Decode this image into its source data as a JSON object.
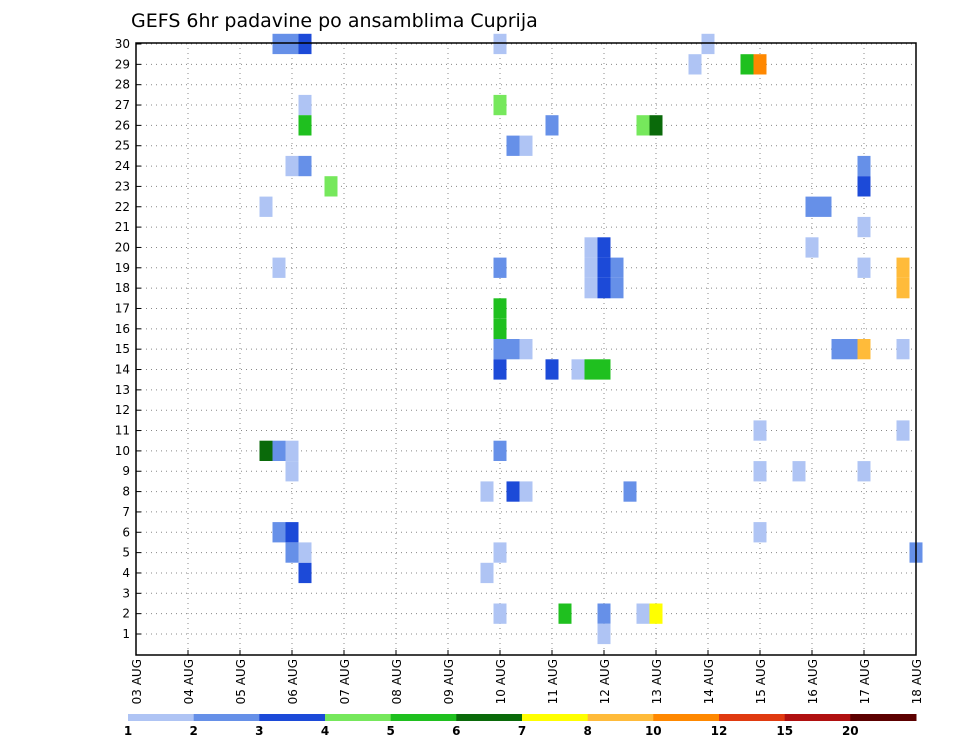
{
  "chart_data": {
    "type": "heatmap",
    "title": "GEFS 6hr padavine po ansamblima Cuprija",
    "x_labels": [
      "03 AUG",
      "04 AUG",
      "05 AUG",
      "06 AUG",
      "07 AUG",
      "08 AUG",
      "09 AUG",
      "10 AUG",
      "11 AUG",
      "12 AUG",
      "13 AUG",
      "14 AUG",
      "15 AUG",
      "16 AUG",
      "17 AUG",
      "18 AUG"
    ],
    "y_labels": [
      "1",
      "2",
      "3",
      "4",
      "5",
      "6",
      "7",
      "8",
      "9",
      "10",
      "11",
      "12",
      "13",
      "14",
      "15",
      "16",
      "17",
      "18",
      "19",
      "20",
      "21",
      "22",
      "23",
      "24",
      "25",
      "26",
      "27",
      "28",
      "29",
      "30"
    ],
    "xlim_days": [
      0,
      15
    ],
    "ylim": [
      1,
      30
    ],
    "grid": true,
    "colorbar": {
      "labels": [
        "1",
        "2",
        "3",
        "4",
        "5",
        "6",
        "7",
        "8",
        "10",
        "12",
        "15",
        "20"
      ],
      "colors": [
        "#afc4f4",
        "#6690e8",
        "#1c4ad8",
        "#76e85c",
        "#1fc01f",
        "#0a6a0a",
        "#ffff00",
        "#ffbb3a",
        "#ff8800",
        "#e03a10",
        "#b01010",
        "#5c0000"
      ]
    },
    "cells": [
      {
        "x": 2.75,
        "y": 30,
        "c": 1
      },
      {
        "x": 3.0,
        "y": 30,
        "c": 1
      },
      {
        "x": 3.25,
        "y": 30,
        "c": 2
      },
      {
        "x": 7.0,
        "y": 30,
        "c": 0
      },
      {
        "x": 11.0,
        "y": 30,
        "c": 0
      },
      {
        "x": 10.75,
        "y": 29,
        "c": 0
      },
      {
        "x": 11.75,
        "y": 29,
        "c": 4
      },
      {
        "x": 12.0,
        "y": 29,
        "c": 8
      },
      {
        "x": 3.25,
        "y": 27,
        "c": 0
      },
      {
        "x": 7.0,
        "y": 27,
        "c": 3
      },
      {
        "x": 3.25,
        "y": 26,
        "c": 4
      },
      {
        "x": 8.0,
        "y": 26,
        "c": 1
      },
      {
        "x": 9.75,
        "y": 26,
        "c": 3
      },
      {
        "x": 10.0,
        "y": 26,
        "c": 5
      },
      {
        "x": 7.25,
        "y": 25,
        "c": 1
      },
      {
        "x": 7.5,
        "y": 25,
        "c": 0
      },
      {
        "x": 3.0,
        "y": 24,
        "c": 0
      },
      {
        "x": 3.25,
        "y": 24,
        "c": 1
      },
      {
        "x": 14.0,
        "y": 24,
        "c": 1
      },
      {
        "x": 3.75,
        "y": 23,
        "c": 3
      },
      {
        "x": 14.0,
        "y": 23,
        "c": 2
      },
      {
        "x": 2.5,
        "y": 22,
        "c": 0
      },
      {
        "x": 13.0,
        "y": 22,
        "c": 1
      },
      {
        "x": 13.25,
        "y": 22,
        "c": 1
      },
      {
        "x": 14.0,
        "y": 21,
        "c": 0
      },
      {
        "x": 8.75,
        "y": 20,
        "c": 0
      },
      {
        "x": 9.0,
        "y": 20,
        "c": 2
      },
      {
        "x": 13.0,
        "y": 20,
        "c": 0
      },
      {
        "x": 2.75,
        "y": 19,
        "c": 0
      },
      {
        "x": 7.0,
        "y": 19,
        "c": 1
      },
      {
        "x": 8.75,
        "y": 19,
        "c": 0
      },
      {
        "x": 9.0,
        "y": 19,
        "c": 2
      },
      {
        "x": 9.25,
        "y": 19,
        "c": 1
      },
      {
        "x": 14.0,
        "y": 19,
        "c": 0
      },
      {
        "x": 14.75,
        "y": 19,
        "c": 7
      },
      {
        "x": 8.75,
        "y": 18,
        "c": 0
      },
      {
        "x": 9.0,
        "y": 18,
        "c": 2
      },
      {
        "x": 9.25,
        "y": 18,
        "c": 1
      },
      {
        "x": 14.75,
        "y": 18,
        "c": 7
      },
      {
        "x": 7.0,
        "y": 17,
        "c": 4
      },
      {
        "x": 7.0,
        "y": 16,
        "c": 4
      },
      {
        "x": 7.0,
        "y": 15,
        "c": 1
      },
      {
        "x": 7.25,
        "y": 15,
        "c": 1
      },
      {
        "x": 7.5,
        "y": 15,
        "c": 0
      },
      {
        "x": 13.5,
        "y": 15,
        "c": 1
      },
      {
        "x": 13.75,
        "y": 15,
        "c": 1
      },
      {
        "x": 14.0,
        "y": 15,
        "c": 7
      },
      {
        "x": 14.75,
        "y": 15,
        "c": 0
      },
      {
        "x": 7.0,
        "y": 14,
        "c": 2
      },
      {
        "x": 8.0,
        "y": 14,
        "c": 2
      },
      {
        "x": 8.5,
        "y": 14,
        "c": 0
      },
      {
        "x": 8.75,
        "y": 14,
        "c": 4
      },
      {
        "x": 9.0,
        "y": 14,
        "c": 4
      },
      {
        "x": 12.0,
        "y": 11,
        "c": 0
      },
      {
        "x": 14.75,
        "y": 11,
        "c": 0
      },
      {
        "x": 2.5,
        "y": 10,
        "c": 5
      },
      {
        "x": 2.75,
        "y": 10,
        "c": 1
      },
      {
        "x": 3.0,
        "y": 10,
        "c": 0
      },
      {
        "x": 7.0,
        "y": 10,
        "c": 1
      },
      {
        "x": 3.0,
        "y": 9,
        "c": 0
      },
      {
        "x": 12.0,
        "y": 9,
        "c": 0
      },
      {
        "x": 12.75,
        "y": 9,
        "c": 0
      },
      {
        "x": 14.0,
        "y": 9,
        "c": 0
      },
      {
        "x": 6.75,
        "y": 8,
        "c": 0
      },
      {
        "x": 7.25,
        "y": 8,
        "c": 2
      },
      {
        "x": 7.5,
        "y": 8,
        "c": 0
      },
      {
        "x": 9.5,
        "y": 8,
        "c": 1
      },
      {
        "x": 2.75,
        "y": 6,
        "c": 1
      },
      {
        "x": 3.0,
        "y": 6,
        "c": 2
      },
      {
        "x": 12.0,
        "y": 6,
        "c": 0
      },
      {
        "x": 3.0,
        "y": 5,
        "c": 1
      },
      {
        "x": 3.25,
        "y": 5,
        "c": 0
      },
      {
        "x": 7.0,
        "y": 5,
        "c": 0
      },
      {
        "x": 15.0,
        "y": 5,
        "c": 1
      },
      {
        "x": 3.25,
        "y": 4,
        "c": 2
      },
      {
        "x": 6.75,
        "y": 4,
        "c": 0
      },
      {
        "x": 7.0,
        "y": 2,
        "c": 0
      },
      {
        "x": 8.25,
        "y": 2,
        "c": 4
      },
      {
        "x": 9.0,
        "y": 2,
        "c": 1
      },
      {
        "x": 9.75,
        "y": 2,
        "c": 0
      },
      {
        "x": 10.0,
        "y": 2,
        "c": 6
      },
      {
        "x": 9.0,
        "y": 1,
        "c": 0
      }
    ]
  }
}
